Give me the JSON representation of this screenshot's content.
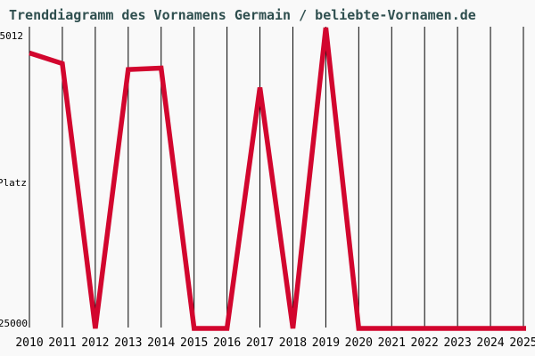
{
  "colors": {
    "line": "#d2062e",
    "title": "#2f4f4f",
    "axis": "#000000",
    "text": "#000000",
    "background": "#f9f9f9"
  },
  "chart_data": {
    "type": "line",
    "title": "Trenddiagramm des Vornamens Germain / beliebte-Vornamen.de",
    "ylabel": "Platz",
    "y_top_label": "5012",
    "y_bottom_label": "25000",
    "y_axis_inverted": true,
    "ylim": [
      5012,
      25000
    ],
    "x": [
      2010,
      2011,
      2012,
      2013,
      2014,
      2015,
      2016,
      2017,
      2018,
      2019,
      2020,
      2021,
      2022,
      2023,
      2024,
      2025
    ],
    "values": [
      6700,
      7400,
      25000,
      7800,
      7700,
      25000,
      25000,
      9000,
      25000,
      5012,
      25000,
      25000,
      25000,
      25000,
      25000,
      25000
    ],
    "grid": "vertical-only",
    "legend_position": "none"
  }
}
